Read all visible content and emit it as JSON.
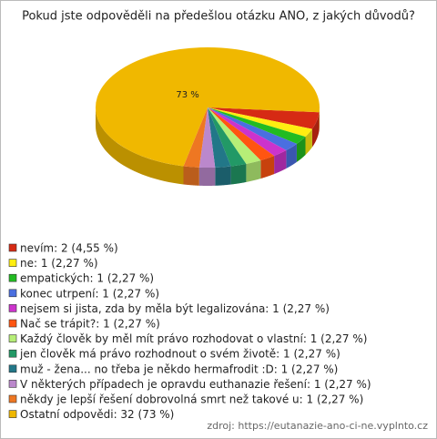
{
  "chart_data": {
    "type": "pie3d",
    "title": "Pokud jste odpověděli na předešlou otázku ANO, z jakých důvodů?",
    "categories": [
      "nevím: 2 (4,55 %)",
      "ne: 1 (2,27 %)",
      "empatických: 1 (2,27 %)",
      "konec utrpení: 1 (2,27 %)",
      "nejsem si jista, zda by měla být legalizována: 1 (2,27 %)",
      "Nač se trápit?: 1 (2,27 %)",
      "Každý člověk by měl mít právo rozhodovat o vlastní: 1 (2,27 %)",
      "jen člověk má právo rozhodnout o svém životě: 1 (2,27 %)",
      "muž - žena... no třeba je někdo hermafrodit :D: 1 (2,27 %)",
      "V některých případech je opravdu euthanazie řešení: 1 (2,27 %)",
      "někdy je lepší řešení dobrovolná smrt než takové u: 1 (2,27 %)",
      "Ostatní odpovědi: 32 (73 %)"
    ],
    "values": [
      4.55,
      2.27,
      2.27,
      2.27,
      2.27,
      2.27,
      2.27,
      2.27,
      2.27,
      2.27,
      2.27,
      73
    ],
    "value_labels": [
      null,
      null,
      null,
      null,
      null,
      null,
      null,
      null,
      null,
      null,
      null,
      "73 %"
    ],
    "colors": [
      "#d62a14",
      "#ffee11",
      "#22bb22",
      "#4a6fe0",
      "#cc33cc",
      "#ff5511",
      "#b6ee77",
      "#229966",
      "#227788",
      "#bb88cc",
      "#ee7722",
      "#f0b800"
    ],
    "source": "zdroj: https://eutanazie-ano-ci-ne.vyplnto.cz"
  }
}
